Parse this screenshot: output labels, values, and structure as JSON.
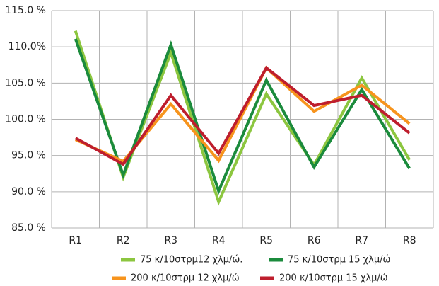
{
  "chart_data": {
    "type": "line",
    "categories": [
      "R1",
      "R2",
      "R3",
      "R4",
      "R5",
      "R6",
      "R7",
      "R8"
    ],
    "series": [
      {
        "name": "75 κ/10στρμ12 χλμ/ώ.",
        "color": "#8cc63f",
        "values": [
          112.2,
          92.0,
          109.2,
          88.6,
          103.5,
          93.7,
          105.7,
          94.4
        ]
      },
      {
        "name": "75 κ/10στρμ 15 χλμ/ώ",
        "color": "#1b8b3c",
        "values": [
          111.1,
          92.3,
          110.3,
          90.1,
          105.4,
          93.4,
          104.1,
          93.2
        ]
      },
      {
        "name": "200 κ/10στρμ 12 χλμ/ώ",
        "color": "#f7941d",
        "values": [
          97.2,
          94.2,
          102.1,
          94.3,
          107.1,
          101.1,
          104.7,
          99.4
        ]
      },
      {
        "name": "200 κ/10στρμ 15 χλμ/ώ",
        "color": "#be1e2d",
        "values": [
          97.4,
          93.8,
          103.3,
          95.3,
          107.1,
          101.9,
          103.3,
          98.1
        ]
      }
    ],
    "ylim": [
      85,
      115
    ],
    "yticks": [
      {
        "value": 85,
        "label": "85.0 %"
      },
      {
        "value": 90,
        "label": "90.0 %"
      },
      {
        "value": 95,
        "label": "95.0 %"
      },
      {
        "value": 100,
        "label": "100.0 %"
      },
      {
        "value": 105,
        "label": "105.0 %"
      },
      {
        "value": 110,
        "label": "110.0%"
      },
      {
        "value": 115,
        "label": "115.0 %"
      }
    ],
    "grid": true,
    "legend": "bottom"
  }
}
